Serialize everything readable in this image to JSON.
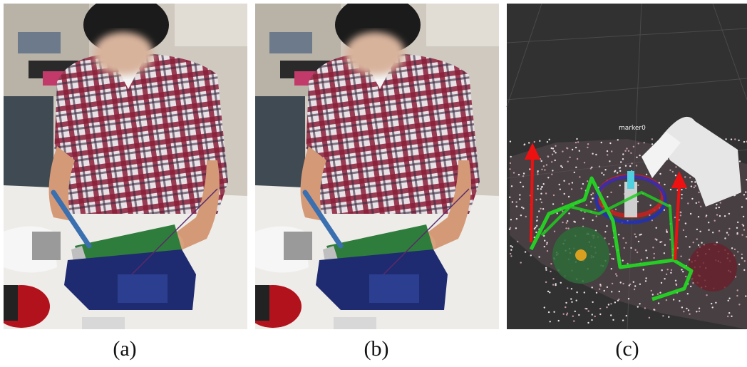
{
  "panels": [
    {
      "caption": "(a)"
    },
    {
      "caption": "(b)"
    },
    {
      "caption": "(c)",
      "label": "marker0"
    }
  ]
}
